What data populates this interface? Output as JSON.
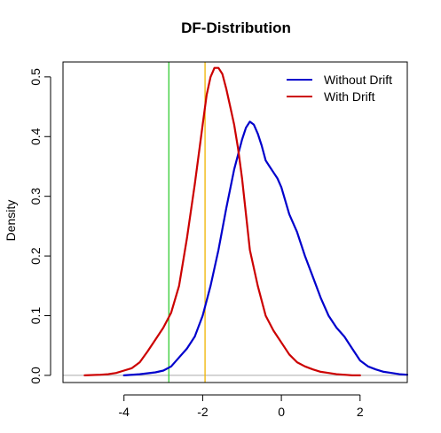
{
  "chart_data": {
    "type": "line",
    "title": "DF-Distribution",
    "xlabel": "",
    "ylabel": "Density",
    "xlim": [
      -5.55,
      3.2
    ],
    "ylim": [
      -0.012,
      0.525
    ],
    "xticks": [
      -4,
      -2,
      0,
      2
    ],
    "yticks": [
      0.0,
      0.1,
      0.2,
      0.3,
      0.4,
      0.5
    ],
    "xtick_labels": [
      "-4",
      "-2",
      "0",
      "2"
    ],
    "ytick_labels": [
      "0.0",
      "0.1",
      "0.2",
      "0.3",
      "0.4",
      "0.5"
    ],
    "grid": false,
    "legend_position": "top-right",
    "baseline": 0,
    "series": [
      {
        "name": "Without Drift",
        "color": "#0000cc",
        "x": [
          -4.0,
          -3.6,
          -3.2,
          -3.0,
          -2.8,
          -2.6,
          -2.4,
          -2.2,
          -2.0,
          -1.8,
          -1.6,
          -1.4,
          -1.2,
          -1.0,
          -0.9,
          -0.8,
          -0.7,
          -0.6,
          -0.5,
          -0.4,
          -0.3,
          -0.2,
          -0.1,
          0.0,
          0.2,
          0.4,
          0.6,
          0.8,
          1.0,
          1.2,
          1.4,
          1.6,
          1.8,
          2.0,
          2.2,
          2.4,
          2.6,
          2.8,
          3.0,
          3.2
        ],
        "y": [
          0.0,
          0.002,
          0.005,
          0.008,
          0.015,
          0.03,
          0.045,
          0.065,
          0.1,
          0.15,
          0.21,
          0.28,
          0.345,
          0.395,
          0.415,
          0.425,
          0.42,
          0.405,
          0.385,
          0.36,
          0.35,
          0.34,
          0.33,
          0.315,
          0.27,
          0.24,
          0.2,
          0.165,
          0.13,
          0.1,
          0.08,
          0.065,
          0.045,
          0.025,
          0.015,
          0.01,
          0.006,
          0.004,
          0.002,
          0.001
        ]
      },
      {
        "name": "With Drift",
        "color": "#cc0000",
        "x": [
          -5.0,
          -4.6,
          -4.4,
          -4.2,
          -4.0,
          -3.8,
          -3.6,
          -3.4,
          -3.2,
          -3.0,
          -2.8,
          -2.6,
          -2.4,
          -2.2,
          -2.0,
          -1.9,
          -1.8,
          -1.7,
          -1.6,
          -1.5,
          -1.4,
          -1.3,
          -1.2,
          -1.1,
          -1.0,
          -0.9,
          -0.8,
          -0.6,
          -0.4,
          -0.2,
          0.0,
          0.2,
          0.4,
          0.6,
          0.8,
          1.0,
          1.2,
          1.4,
          1.6,
          1.8,
          2.0
        ],
        "y": [
          0.0,
          0.001,
          0.002,
          0.004,
          0.008,
          0.012,
          0.022,
          0.04,
          0.06,
          0.08,
          0.105,
          0.15,
          0.23,
          0.32,
          0.42,
          0.47,
          0.5,
          0.515,
          0.515,
          0.505,
          0.48,
          0.45,
          0.42,
          0.38,
          0.33,
          0.27,
          0.21,
          0.15,
          0.1,
          0.075,
          0.055,
          0.035,
          0.022,
          0.015,
          0.01,
          0.006,
          0.004,
          0.002,
          0.001,
          0.0,
          0.0
        ]
      }
    ],
    "vertical_lines": [
      {
        "x": -2.86,
        "color": "#33cc33"
      },
      {
        "x": -1.94,
        "color": "#f0b400"
      }
    ],
    "baseline_color": "#aaaaaa"
  }
}
